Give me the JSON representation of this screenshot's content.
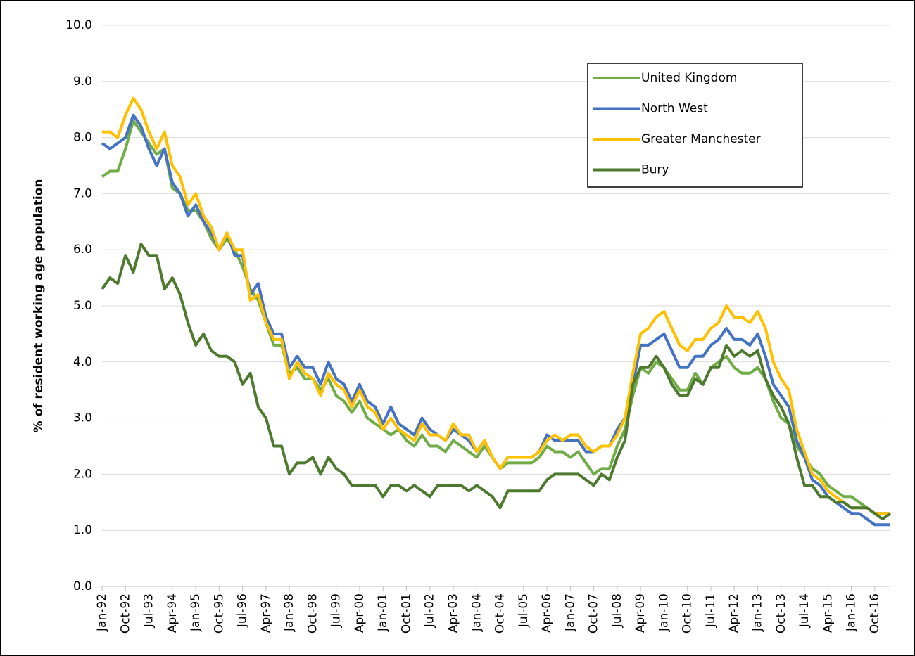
{
  "chart_data": {
    "type": "line",
    "y_label": "% of resident working age population",
    "categories": [
      "Jan-92",
      null,
      null,
      "Oct-92",
      null,
      null,
      "Jul-93",
      null,
      null,
      "Apr-94",
      null,
      null,
      "Jan-95",
      null,
      null,
      "Oct-95",
      null,
      null,
      "Jul-96",
      null,
      null,
      "Apr-97",
      null,
      null,
      "Jan-98",
      null,
      null,
      "Oct-98",
      null,
      null,
      "Jul-99",
      null,
      null,
      "Apr-00",
      null,
      null,
      "Jan-01",
      null,
      null,
      "Oct-01",
      null,
      null,
      "Jul-02",
      null,
      null,
      "Apr-03",
      null,
      null,
      "Jan-04",
      null,
      null,
      "Oct-04",
      null,
      null,
      "Jul-05",
      null,
      null,
      "Apr-06",
      null,
      null,
      "Jan-07",
      null,
      null,
      "Oct-07",
      null,
      null,
      "Jul-08",
      null,
      null,
      "Apr-09",
      null,
      null,
      "Jan-10",
      null,
      null,
      "Oct-10",
      null,
      null,
      "Jul-11",
      null,
      null,
      "Apr-12",
      null,
      null,
      "Jan-13",
      null,
      null,
      "Oct-13",
      null,
      null,
      "Jul-14",
      null,
      null,
      "Apr-15",
      null,
      null,
      "Jan-16",
      null,
      null,
      "Oct-16",
      null,
      null
    ],
    "series": [
      {
        "name": "United Kingdom",
        "color": "#70ad47",
        "values": [
          7.3,
          7.4,
          7.4,
          7.8,
          8.3,
          8.1,
          7.9,
          7.7,
          7.8,
          7.1,
          7.0,
          6.7,
          6.7,
          6.5,
          6.2,
          6.0,
          6.2,
          6.0,
          5.7,
          5.3,
          5.1,
          4.7,
          4.3,
          4.3,
          3.8,
          3.9,
          3.7,
          3.7,
          3.5,
          3.7,
          3.4,
          3.3,
          3.1,
          3.3,
          3.0,
          2.9,
          2.8,
          2.7,
          2.8,
          2.6,
          2.5,
          2.7,
          2.5,
          2.5,
          2.4,
          2.6,
          2.5,
          2.4,
          2.3,
          2.5,
          2.3,
          2.1,
          2.2,
          2.2,
          2.2,
          2.2,
          2.3,
          2.5,
          2.4,
          2.4,
          2.3,
          2.4,
          2.2,
          2.0,
          2.1,
          2.1,
          2.5,
          2.8,
          3.4,
          3.9,
          3.8,
          4.0,
          3.9,
          3.7,
          3.5,
          3.5,
          3.8,
          3.6,
          3.9,
          4.0,
          4.1,
          3.9,
          3.8,
          3.8,
          3.9,
          3.7,
          3.3,
          3.0,
          2.9,
          2.5,
          2.3,
          2.1,
          2.0,
          1.8,
          1.7,
          1.6,
          1.6,
          1.5,
          1.4,
          1.3,
          1.3,
          1.3
        ]
      },
      {
        "name": "North West",
        "color": "#4472c4",
        "values": [
          7.9,
          7.8,
          7.9,
          8.0,
          8.4,
          8.2,
          7.8,
          7.5,
          7.8,
          7.2,
          7.0,
          6.6,
          6.8,
          6.5,
          6.3,
          6.0,
          6.3,
          5.9,
          5.9,
          5.2,
          5.4,
          4.8,
          4.5,
          4.5,
          3.9,
          4.1,
          3.9,
          3.9,
          3.6,
          4.0,
          3.7,
          3.6,
          3.3,
          3.6,
          3.3,
          3.2,
          2.9,
          3.2,
          2.9,
          2.8,
          2.7,
          3.0,
          2.8,
          2.7,
          2.6,
          2.8,
          2.7,
          2.6,
          2.4,
          2.6,
          2.3,
          2.1,
          2.3,
          2.3,
          2.3,
          2.3,
          2.4,
          2.7,
          2.6,
          2.6,
          2.6,
          2.6,
          2.4,
          2.4,
          2.5,
          2.5,
          2.8,
          3.0,
          3.6,
          4.3,
          4.3,
          4.4,
          4.5,
          4.2,
          3.9,
          3.9,
          4.1,
          4.1,
          4.3,
          4.4,
          4.6,
          4.4,
          4.4,
          4.3,
          4.5,
          4.1,
          3.6,
          3.4,
          3.2,
          2.6,
          2.3,
          1.9,
          1.8,
          1.6,
          1.5,
          1.4,
          1.3,
          1.3,
          1.2,
          1.1,
          1.1,
          1.1
        ]
      },
      {
        "name": "Greater Manchester",
        "color": "#ffc000",
        "values": [
          8.1,
          8.1,
          8.0,
          8.4,
          8.7,
          8.5,
          8.1,
          7.8,
          8.1,
          7.5,
          7.3,
          6.8,
          7.0,
          6.6,
          6.4,
          6.0,
          6.3,
          6.0,
          6.0,
          5.1,
          5.2,
          4.7,
          4.4,
          4.4,
          3.7,
          4.0,
          3.8,
          3.7,
          3.4,
          3.8,
          3.6,
          3.5,
          3.2,
          3.5,
          3.2,
          3.1,
          2.8,
          3.0,
          2.8,
          2.7,
          2.6,
          2.9,
          2.7,
          2.7,
          2.6,
          2.9,
          2.7,
          2.7,
          2.4,
          2.6,
          2.3,
          2.1,
          2.3,
          2.3,
          2.3,
          2.3,
          2.4,
          2.6,
          2.7,
          2.6,
          2.7,
          2.7,
          2.5,
          2.4,
          2.5,
          2.5,
          2.7,
          3.0,
          3.8,
          4.5,
          4.6,
          4.8,
          4.9,
          4.6,
          4.3,
          4.2,
          4.4,
          4.4,
          4.6,
          4.7,
          5.0,
          4.8,
          4.8,
          4.7,
          4.9,
          4.6,
          4.0,
          3.7,
          3.5,
          2.8,
          2.4,
          2.0,
          1.9,
          1.7,
          1.6,
          1.5,
          1.4,
          1.4,
          1.4,
          1.3,
          1.3,
          1.3
        ]
      },
      {
        "name": "Bury",
        "color": "#4e7a2f",
        "values": [
          5.3,
          5.5,
          5.4,
          5.9,
          5.6,
          6.1,
          5.9,
          5.9,
          5.3,
          5.5,
          5.2,
          4.7,
          4.3,
          4.5,
          4.2,
          4.1,
          4.1,
          4.0,
          3.6,
          3.8,
          3.2,
          3.0,
          2.5,
          2.5,
          2.0,
          2.2,
          2.2,
          2.3,
          2.0,
          2.3,
          2.1,
          2.0,
          1.8,
          1.8,
          1.8,
          1.8,
          1.6,
          1.8,
          1.8,
          1.7,
          1.8,
          1.7,
          1.6,
          1.8,
          1.8,
          1.8,
          1.8,
          1.7,
          1.8,
          1.7,
          1.6,
          1.4,
          1.7,
          1.7,
          1.7,
          1.7,
          1.7,
          1.9,
          2.0,
          2.0,
          2.0,
          2.0,
          1.9,
          1.8,
          2.0,
          1.9,
          2.3,
          2.6,
          3.6,
          3.9,
          3.9,
          4.1,
          3.9,
          3.6,
          3.4,
          3.4,
          3.7,
          3.6,
          3.9,
          3.9,
          4.3,
          4.1,
          4.2,
          4.1,
          4.2,
          3.7,
          3.4,
          3.2,
          2.9,
          2.3,
          1.8,
          1.8,
          1.6,
          1.6,
          1.5,
          1.5,
          1.4,
          1.4,
          1.4,
          1.3,
          1.2,
          1.3
        ]
      }
    ],
    "ylim": [
      0,
      10
    ],
    "yticks": [
      {
        "value": 0,
        "label": "0.0"
      },
      {
        "value": 1,
        "label": "1.0"
      },
      {
        "value": 2,
        "label": "2.0"
      },
      {
        "value": 3,
        "label": "3.0"
      },
      {
        "value": 4,
        "label": "4.0"
      },
      {
        "value": 5,
        "label": "5.0"
      },
      {
        "value": 6,
        "label": "6.0"
      },
      {
        "value": 7,
        "label": "7.0"
      },
      {
        "value": 8,
        "label": "8.0"
      },
      {
        "value": 9,
        "label": "9.0"
      },
      {
        "value": 10,
        "label": "10.0"
      }
    ],
    "grid": true,
    "legend": "upper right"
  }
}
